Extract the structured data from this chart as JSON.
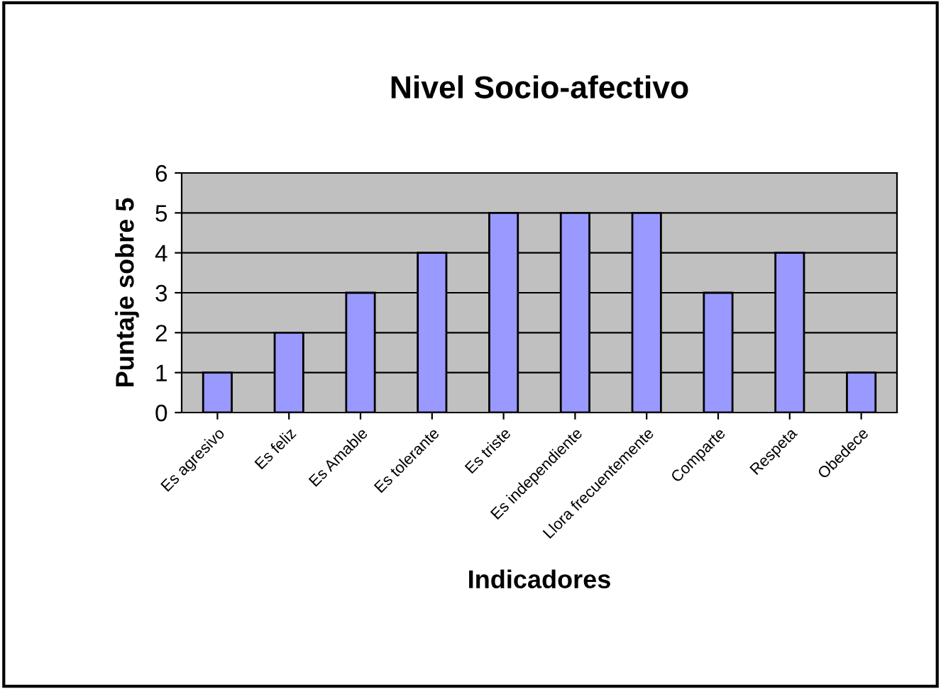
{
  "chart_data": {
    "type": "bar",
    "title": "Nivel Socio-afectivo",
    "xlabel": "Indicadores",
    "ylabel": "Puntaje sobre 5",
    "categories": [
      "Es agresivo",
      "Es feliz",
      "Es Amable",
      "Es tolerante",
      "Es triste",
      "Es independiente",
      "Llora frecuentemente",
      "Comparte",
      "Respeta",
      "Obedece"
    ],
    "values": [
      1,
      2,
      3,
      4,
      5,
      5,
      5,
      3,
      4,
      1
    ],
    "color": "#9999ff",
    "ylim": [
      0,
      6
    ],
    "yticks": [
      0,
      1,
      2,
      3,
      4,
      5,
      6
    ],
    "grid": "y",
    "legend": false
  }
}
